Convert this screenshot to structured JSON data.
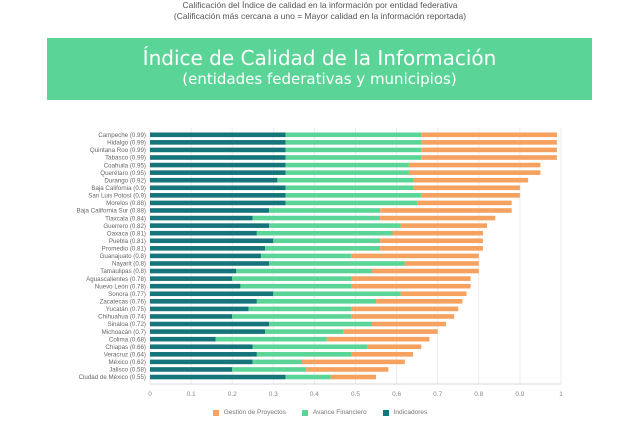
{
  "caption": {
    "line1": "Calificación del Índice de calidad en la información por entidad federativa",
    "line2": "(Calificación más cercana a uno = Mayor calidad en la información reportada)"
  },
  "banner": {
    "title": "Índice de Calidad de la Información",
    "subtitle": "(entidades federativas y municipios)"
  },
  "colors": {
    "banner": "#5bd597",
    "Indicadores": "#16757b",
    "Avance Financiero": "#5bd597",
    "Gestión de Proyectos": "#f5a160"
  },
  "chart_data": {
    "type": "bar",
    "orientation": "horizontal",
    "stacked": true,
    "categories": [
      "Campeche (0.99)",
      "Hidalgo (0.99)",
      "Quintana Roo (0.99)",
      "Tabasco (0.99)",
      "Coahuila (0.95)",
      "Querétaro (0.95)",
      "Durango (0.92)",
      "Baja California (0.9)",
      "San Luis Potosí (0.9)",
      "Morelos (0.88)",
      "Baja California Sur (0.88)",
      "Tlaxcala (0.84)",
      "Guerrero (0.82)",
      "Oaxaca (0.81)",
      "Puebla (0.81)",
      "Promedio (0.81)",
      "Guanajuato (0.8)",
      "Nayarit (0.8)",
      "Tamaulipas (0.8)",
      "Aguascalientes (0.78)",
      "Nuevo León (0.78)",
      "Sonora (0.77)",
      "Zacatecas (0.76)",
      "Yucatán (0.75)",
      "Chihuahua (0.74)",
      "Sinaloa (0.72)",
      "Michoacán (0.7)",
      "Colima (0.68)",
      "Chiapas (0.66)",
      "Veracruz (0.64)",
      "México (0.62)",
      "Jalisco (0.58)",
      "Ciudad de México (0.55)"
    ],
    "series": [
      {
        "name": "Indicadores",
        "values": [
          0.33,
          0.33,
          0.33,
          0.33,
          0.33,
          0.33,
          0.31,
          0.33,
          0.33,
          0.33,
          0.29,
          0.25,
          0.29,
          0.26,
          0.3,
          0.28,
          0.27,
          0.29,
          0.21,
          0.2,
          0.22,
          0.3,
          0.26,
          0.24,
          0.2,
          0.29,
          0.28,
          0.16,
          0.25,
          0.26,
          0.25,
          0.2,
          0.33
        ]
      },
      {
        "name": "Avance Financiero",
        "values": [
          0.33,
          0.33,
          0.33,
          0.33,
          0.3,
          0.3,
          0.33,
          0.31,
          0.33,
          0.32,
          0.27,
          0.31,
          0.32,
          0.33,
          0.26,
          0.28,
          0.22,
          0.33,
          0.33,
          0.29,
          0.27,
          0.31,
          0.29,
          0.25,
          0.29,
          0.25,
          0.19,
          0.27,
          0.28,
          0.23,
          0.12,
          0.18,
          0.11
        ]
      },
      {
        "name": "Gestión de Proyectos",
        "values": [
          0.33,
          0.33,
          0.33,
          0.33,
          0.32,
          0.32,
          0.28,
          0.26,
          0.24,
          0.23,
          0.32,
          0.28,
          0.21,
          0.22,
          0.25,
          0.25,
          0.31,
          0.18,
          0.26,
          0.29,
          0.29,
          0.16,
          0.21,
          0.26,
          0.25,
          0.18,
          0.23,
          0.25,
          0.13,
          0.15,
          0.25,
          0.2,
          0.11
        ]
      }
    ],
    "legend_order": [
      "Gestión de Proyectos",
      "Avance Financiero",
      "Indicadores"
    ],
    "xticks": [
      "0",
      "0.1",
      "0.2",
      "0.3",
      "0.4",
      "0.5",
      "0.6",
      "0.7",
      "0.8",
      "0.9",
      "1"
    ],
    "xlim": [
      0,
      1
    ],
    "grid": true,
    "legend_position": "bottom"
  }
}
